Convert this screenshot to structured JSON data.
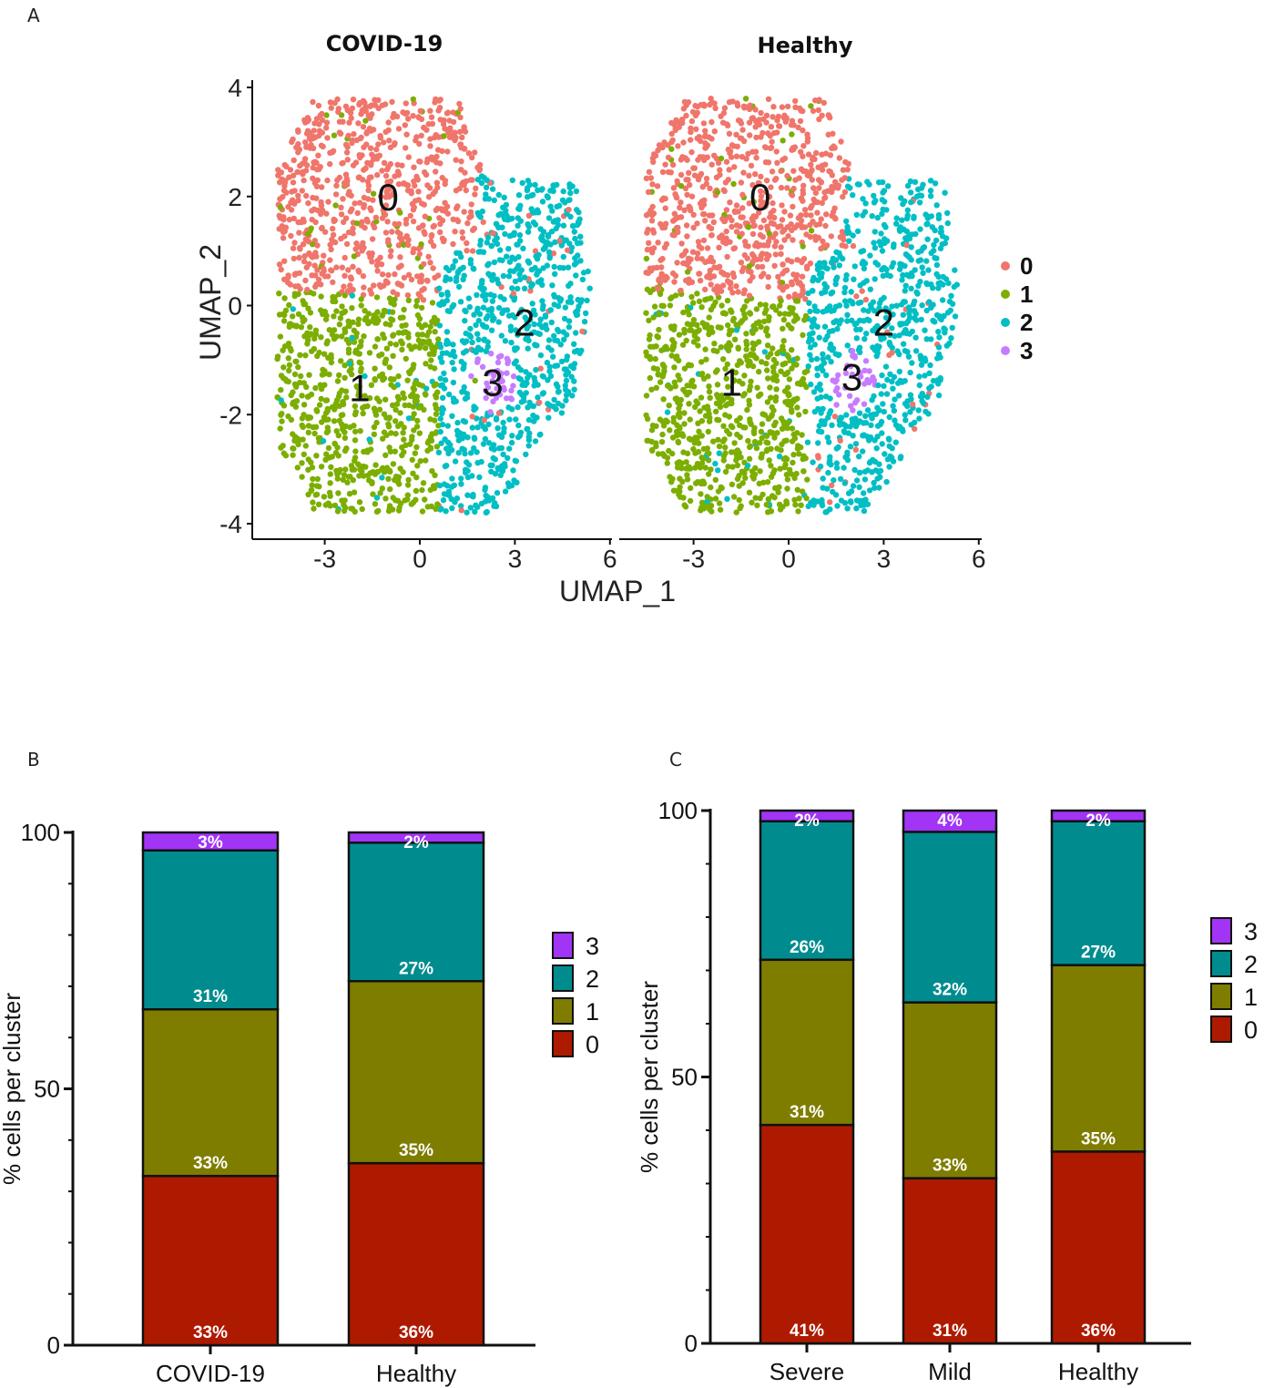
{
  "figure": {
    "panel_a_letter": "A",
    "panel_b_letter": "B",
    "panel_c_letter": "C"
  },
  "chart_data": [
    {
      "id": "A",
      "type": "scatter",
      "title_left": "COVID-19",
      "title_right": "Healthy",
      "xlabel": "UMAP_1",
      "ylabel": "UMAP_2",
      "xlim": [
        -5,
        6.2
      ],
      "ylim": [
        -4.2,
        4.3
      ],
      "xticks": [
        "-3",
        "0",
        "3",
        "6"
      ],
      "yticks": [
        "4",
        "2",
        "0",
        "-2",
        "-4"
      ],
      "legend": {
        "position": "right",
        "entries": [
          {
            "label": "0",
            "color": "#F0756B"
          },
          {
            "label": "1",
            "color": "#7CAE00"
          },
          {
            "label": "2",
            "color": "#00BFC4"
          },
          {
            "label": "3",
            "color": "#C77CFF"
          }
        ]
      },
      "facets": [
        {
          "name": "COVID-19",
          "cluster_labels": [
            {
              "text": "0",
              "x": -1.0,
              "y": 2.0
            },
            {
              "text": "1",
              "x": -1.9,
              "y": -1.5
            },
            {
              "text": "2",
              "x": 3.3,
              "y": -0.3
            },
            {
              "text": "3",
              "x": 2.3,
              "y": -1.4
            }
          ]
        },
        {
          "name": "Healthy",
          "cluster_labels": [
            {
              "text": "0",
              "x": -0.9,
              "y": 2.0
            },
            {
              "text": "1",
              "x": -1.8,
              "y": -1.4
            },
            {
              "text": "2",
              "x": 3.0,
              "y": -0.3
            },
            {
              "text": "3",
              "x": 2.0,
              "y": -1.3
            }
          ]
        }
      ]
    },
    {
      "id": "B",
      "type": "bar",
      "stacked": true,
      "categories": [
        "COVID-19",
        "Healthy"
      ],
      "ylabel": "% cells per cluster",
      "ylim": [
        0,
        100
      ],
      "yticks": [
        "0",
        "50",
        "100"
      ],
      "series": [
        {
          "name": "0",
          "color": "#AE1A00",
          "values": [
            33,
            35.5
          ],
          "labels": [
            "33%",
            "36%"
          ]
        },
        {
          "name": "1",
          "color": "#7F7D00",
          "values": [
            32.5,
            35.5
          ],
          "labels": [
            "33%",
            "35%"
          ]
        },
        {
          "name": "2",
          "color": "#008C8E",
          "values": [
            31,
            27
          ],
          "labels": [
            "31%",
            "27%"
          ]
        },
        {
          "name": "3",
          "color": "#A234F6",
          "values": [
            3.5,
            2
          ],
          "labels": [
            "3%",
            "2%"
          ]
        }
      ],
      "legend": {
        "position": "right",
        "order": [
          "3",
          "2",
          "1",
          "0"
        ]
      }
    },
    {
      "id": "C",
      "type": "bar",
      "stacked": true,
      "categories": [
        "Severe",
        "Mild",
        "Healthy"
      ],
      "ylabel": "% cells per cluster",
      "ylim": [
        0,
        100
      ],
      "yticks": [
        "0",
        "50",
        "100"
      ],
      "series": [
        {
          "name": "0",
          "color": "#AE1A00",
          "values": [
            41,
            31,
            36
          ],
          "labels": [
            "41%",
            "31%",
            "36%"
          ]
        },
        {
          "name": "1",
          "color": "#7F7D00",
          "values": [
            31,
            33,
            35
          ],
          "labels": [
            "31%",
            "33%",
            "35%"
          ]
        },
        {
          "name": "2",
          "color": "#008C8E",
          "values": [
            26,
            32,
            27
          ],
          "labels": [
            "26%",
            "32%",
            "27%"
          ]
        },
        {
          "name": "3",
          "color": "#A234F6",
          "values": [
            2,
            4,
            2
          ],
          "labels": [
            "2%",
            "4%",
            "2%"
          ]
        }
      ],
      "legend": {
        "position": "right",
        "order": [
          "3",
          "2",
          "1",
          "0"
        ]
      }
    }
  ]
}
